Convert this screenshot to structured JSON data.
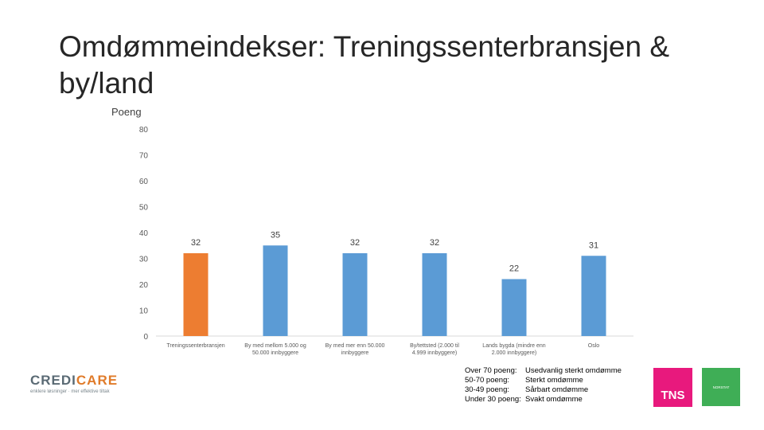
{
  "title": "Omdømmeindekser: Treningssenterbransjen & by/land",
  "chart_data": {
    "type": "bar",
    "ylabel": "Poeng",
    "ylim": [
      0,
      80
    ],
    "yticks": [
      0,
      10,
      20,
      30,
      40,
      50,
      60,
      70,
      80
    ],
    "categories": [
      "Treningssenterbransjen",
      "By med mellom 5.000 og 50.000 innbyggere",
      "By med mer enn 50.000 innbyggere",
      "By/tettsted (2.000 til 4.999 innbyggere)",
      "Lands bygda (mindre enn 2.000 innbyggere)",
      "Oslo"
    ],
    "values": [
      32,
      35,
      32,
      32,
      22,
      31
    ],
    "colors": [
      "#ed7d31",
      "#5b9bd5",
      "#5b9bd5",
      "#5b9bd5",
      "#5b9bd5",
      "#5b9bd5"
    ],
    "grid": false
  },
  "legend": [
    {
      "range": "Over 70 poeng:",
      "text": "Usedvanlig sterkt omdømme"
    },
    {
      "range": "50-70 poeng:",
      "text": "Sterkt omdømme"
    },
    {
      "range": "30-49 poeng:",
      "text": "Sårbart omdømme"
    },
    {
      "range": "Under 30 poeng:",
      "text": "Svakt omdømme"
    }
  ],
  "logos": {
    "credicare_1": "CREDI",
    "credicare_2": "CARE",
    "credicare_tagline": "enklere løsninger · mer effektive tiltak",
    "tns": "TNS",
    "gallup": "NORSTAT"
  }
}
